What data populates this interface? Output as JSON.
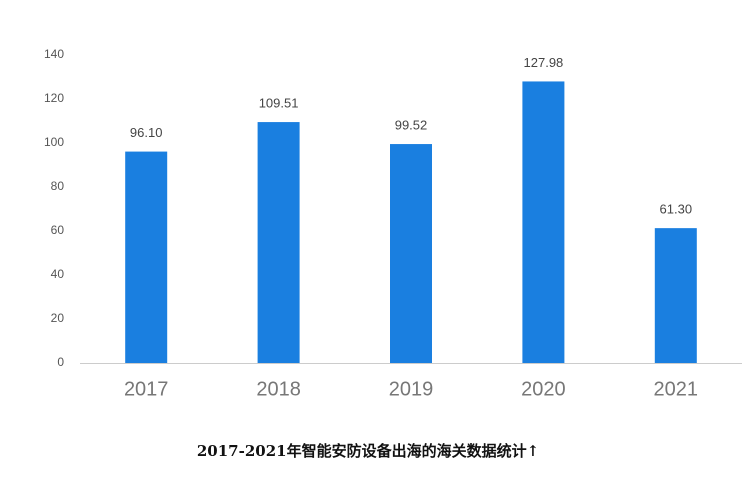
{
  "chart_data": {
    "type": "bar",
    "title": "2017-2021年智能安防设备出海的海关数据统计↑",
    "categories": [
      "2017",
      "2018",
      "2019",
      "2020",
      "2021"
    ],
    "values": [
      96.1,
      109.51,
      99.52,
      127.98,
      61.3
    ],
    "value_labels": [
      "96.10",
      "109.51",
      "99.52",
      "127.98",
      "61.30"
    ],
    "color": "#1a7fe0",
    "ylim": [
      0,
      140
    ],
    "yticks": [
      0,
      20,
      40,
      60,
      80,
      100,
      120,
      140
    ],
    "grid": false
  }
}
